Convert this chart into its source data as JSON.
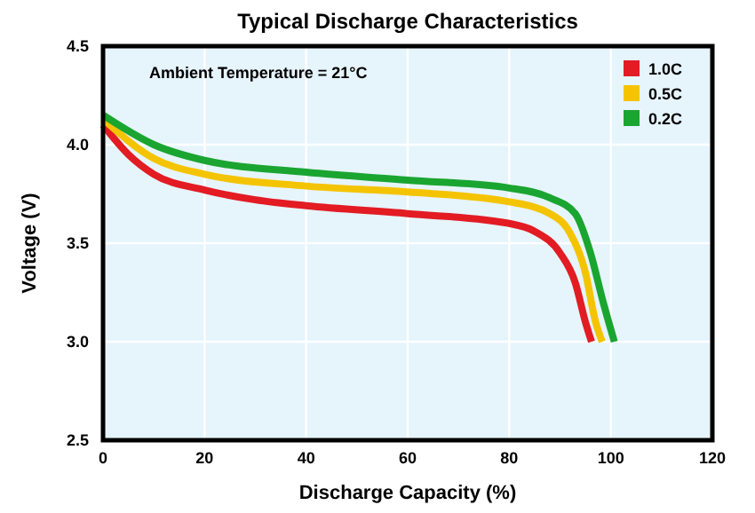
{
  "chart_data": {
    "type": "line",
    "title": "Typical Discharge Characteristics",
    "xlabel": "Discharge Capacity (%)",
    "ylabel": "Voltage (V)",
    "annotations": [
      "Ambient Temperature = 21°C"
    ],
    "xlim": [
      0,
      120
    ],
    "xticks": [
      0,
      20,
      40,
      60,
      80,
      100,
      120
    ],
    "ylim": [
      2.5,
      4.5
    ],
    "yticks": [
      {
        "value": 2.5,
        "label": "2.5"
      },
      {
        "value": 3,
        "label": "3.0"
      },
      {
        "value": 3.5,
        "label": "3.5"
      },
      {
        "value": 4,
        "label": "4.0"
      },
      {
        "value": 4.5,
        "label": "4.5"
      }
    ],
    "grid": true,
    "legend": "top right",
    "series": [
      {
        "name": "1.0C",
        "color": "#e31b23",
        "x": [
          0,
          5,
          10,
          20,
          30,
          40,
          60,
          80,
          85,
          90,
          93,
          95,
          96.2
        ],
        "values": [
          4.1,
          3.95,
          3.85,
          3.77,
          3.72,
          3.69,
          3.65,
          3.6,
          3.56,
          3.45,
          3.3,
          3.1,
          3.0
        ]
      },
      {
        "name": "0.5C",
        "color": "#f5c400",
        "x": [
          0,
          10,
          20,
          40,
          60,
          80,
          88,
          92,
          95,
          97,
          98.3
        ],
        "values": [
          4.13,
          3.93,
          3.85,
          3.79,
          3.76,
          3.71,
          3.65,
          3.55,
          3.35,
          3.1,
          3.0
        ]
      },
      {
        "name": "0.2C",
        "color": "#1aa530",
        "x": [
          0,
          10,
          20,
          40,
          60,
          80,
          88,
          93,
          96,
          98.5,
          100.7
        ],
        "values": [
          4.15,
          4.0,
          3.92,
          3.86,
          3.82,
          3.78,
          3.73,
          3.65,
          3.45,
          3.2,
          3.0
        ]
      }
    ]
  }
}
